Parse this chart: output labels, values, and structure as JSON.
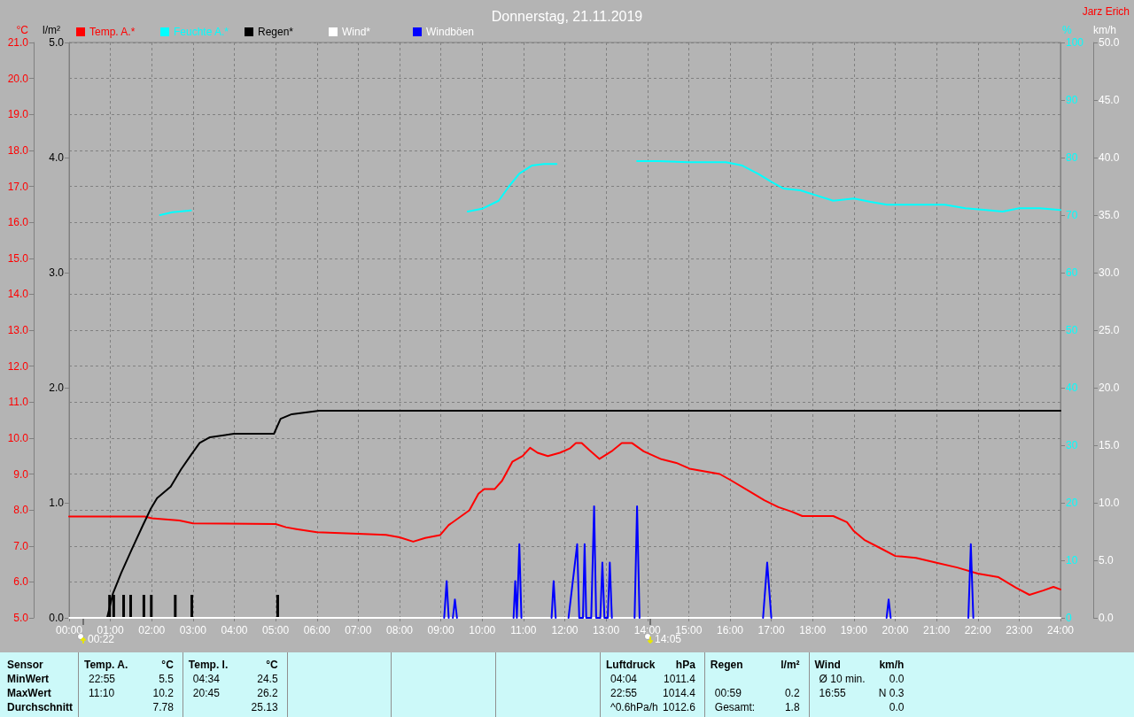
{
  "chart_data": [
    {
      "type": "line",
      "title": "Donnerstag, 21.11.2019",
      "ylabel": "°C",
      "y2label": "l/m²",
      "y3label": "%",
      "xlim": [
        0,
        24
      ],
      "xticks": [
        {
          "value": 0,
          "label": "00:00"
        },
        {
          "value": 1,
          "label": "01:00"
        },
        {
          "value": 2,
          "label": "02:00"
        },
        {
          "value": 3,
          "label": "03:00"
        },
        {
          "value": 4,
          "label": "04:00"
        },
        {
          "value": 5,
          "label": "05:00"
        },
        {
          "value": 6,
          "label": "06:00"
        },
        {
          "value": 7,
          "label": "07:00"
        },
        {
          "value": 8,
          "label": "08:00"
        },
        {
          "value": 9,
          "label": "09:00"
        },
        {
          "value": 10,
          "label": "10:00"
        },
        {
          "value": 11,
          "label": "11:00"
        },
        {
          "value": 12,
          "label": "12:00"
        },
        {
          "value": 13,
          "label": "13:00"
        },
        {
          "value": 14,
          "label": "14:00"
        },
        {
          "value": 15,
          "label": "15:00"
        },
        {
          "value": 16,
          "label": "16:00"
        },
        {
          "value": 17,
          "label": "17:00"
        },
        {
          "value": 18,
          "label": "18:00"
        },
        {
          "value": 19,
          "label": "19:00"
        },
        {
          "value": 20,
          "label": "20:00"
        },
        {
          "value": 21,
          "label": "21:00"
        },
        {
          "value": 22,
          "label": "22:00"
        },
        {
          "value": 23,
          "label": "23:00"
        },
        {
          "value": 24,
          "label": "24:00"
        }
      ],
      "ylim": [
        5,
        21
      ],
      "yticks": [
        {
          "value": 5,
          "label": "5.0"
        },
        {
          "value": 6,
          "label": "6.0"
        },
        {
          "value": 7,
          "label": "7.0"
        },
        {
          "value": 8,
          "label": "8.0"
        },
        {
          "value": 9,
          "label": "9.0"
        },
        {
          "value": 10,
          "label": "10.0"
        },
        {
          "value": 11,
          "label": "11.0"
        },
        {
          "value": 12,
          "label": "12.0"
        },
        {
          "value": 13,
          "label": "13.0"
        },
        {
          "value": 14,
          "label": "14.0"
        },
        {
          "value": 15,
          "label": "15.0"
        },
        {
          "value": 16,
          "label": "16.0"
        },
        {
          "value": 17,
          "label": "17.0"
        },
        {
          "value": 18,
          "label": "18.0"
        },
        {
          "value": 19,
          "label": "19.0"
        },
        {
          "value": 20,
          "label": "20.0"
        },
        {
          "value": 21,
          "label": "21.0"
        }
      ],
      "y2lim": [
        0,
        5
      ],
      "y2ticks": [
        {
          "value": 0,
          "label": "0.0"
        },
        {
          "value": 1,
          "label": "1.0"
        },
        {
          "value": 2,
          "label": "2.0"
        },
        {
          "value": 3,
          "label": "3.0"
        },
        {
          "value": 4,
          "label": "4.0"
        },
        {
          "value": 5,
          "label": "5.0"
        }
      ],
      "y3lim": [
        0,
        100
      ],
      "y3ticks": [
        0,
        10,
        20,
        30,
        40,
        50,
        60,
        70,
        80,
        90,
        100
      ],
      "grid": true,
      "legend": "top left",
      "marker": "none",
      "series": [
        {
          "name": "Temp. A.*",
          "color": "#ff0000",
          "x": [
            0,
            1.83,
            2.0,
            2.67,
            3.0,
            5.0,
            5.25,
            5.5,
            6.0,
            7.0,
            7.67,
            8.0,
            8.33,
            8.62,
            8.98,
            9.19,
            9.69,
            9.91,
            10.05,
            10.3,
            10.48,
            10.73,
            10.98,
            11.16,
            11.34,
            11.59,
            11.88,
            12.12,
            12.27,
            12.41,
            12.59,
            12.84,
            13.13,
            13.38,
            13.63,
            13.91,
            14.34,
            14.7,
            15.02,
            15.75,
            16.0,
            16.5,
            16.83,
            17.17,
            17.5,
            17.75,
            18.5,
            18.83,
            19.0,
            19.25,
            19.67,
            20.0,
            20.5,
            21.0,
            21.5,
            22.0,
            22.5,
            22.92,
            23.25,
            23.58,
            23.83,
            24.0
          ],
          "values": [
            7.82,
            7.82,
            7.77,
            7.71,
            7.63,
            7.61,
            7.52,
            7.47,
            7.38,
            7.34,
            7.31,
            7.24,
            7.12,
            7.22,
            7.3,
            7.58,
            7.99,
            8.45,
            8.58,
            8.58,
            8.81,
            9.34,
            9.5,
            9.73,
            9.59,
            9.5,
            9.59,
            9.71,
            9.86,
            9.86,
            9.67,
            9.42,
            9.63,
            9.86,
            9.86,
            9.63,
            9.41,
            9.31,
            9.15,
            9.0,
            8.84,
            8.5,
            8.27,
            8.08,
            7.95,
            7.83,
            7.83,
            7.66,
            7.41,
            7.17,
            6.92,
            6.72,
            6.67,
            6.53,
            6.4,
            6.23,
            6.13,
            5.84,
            5.64,
            5.76,
            5.86,
            5.79
          ]
        },
        {
          "name": "Feuchte A.*",
          "color": "#00ffff",
          "axis": "y3",
          "x": [
            2.2,
            2.5,
            2.95,
            3.0,
            9.65,
            10.0,
            10.4,
            10.65,
            10.9,
            11.2,
            11.5,
            11.8,
            12.0,
            13.75,
            14.25,
            15.0,
            15.9,
            16.3,
            16.7,
            17.0,
            17.3,
            17.7,
            18.1,
            18.5,
            19.0,
            19.4,
            19.8,
            20.5,
            21.2,
            21.7,
            22.2,
            22.6,
            23.0,
            23.5,
            24.0
          ],
          "values": [
            70.0,
            70.5,
            70.8,
            null,
            70.6,
            71.1,
            72.5,
            75.0,
            77.2,
            78.6,
            78.9,
            78.9,
            null,
            79.4,
            79.4,
            79.2,
            79.2,
            78.6,
            77.1,
            75.8,
            74.6,
            74.3,
            73.4,
            72.5,
            72.9,
            72.3,
            71.8,
            71.8,
            71.8,
            71.2,
            70.9,
            70.6,
            71.2,
            71.2,
            70.9
          ]
        },
        {
          "name": "Regen*",
          "color": "#000000",
          "axis": "y2",
          "x": [
            0,
            0.92,
            1.06,
            1.26,
            1.51,
            1.78,
            1.98,
            2.13,
            2.46,
            2.71,
            2.96,
            3.16,
            3.41,
            3.99,
            4.96,
            5.12,
            5.39,
            6.05,
            24
          ],
          "values": [
            0,
            0,
            0.21,
            0.39,
            0.59,
            0.8,
            0.95,
            1.04,
            1.14,
            1.29,
            1.42,
            1.52,
            1.57,
            1.6,
            1.6,
            1.73,
            1.77,
            1.8,
            1.8
          ]
        },
        {
          "type": "bar",
          "color": "#000000",
          "axis": "y2",
          "x": [
            0.98,
            1.08,
            1.32,
            1.49,
            1.81,
            1.99,
            2.57,
            2.97,
            5.05
          ],
          "values": [
            0.2,
            0.2,
            0.2,
            0.2,
            0.2,
            0.2,
            0.2,
            0.2,
            0.2
          ]
        }
      ],
      "annotations": [
        "Jarz Erich",
        "00:22",
        "14:05",
        "Sensor",
        "MinWert",
        "MaxWert",
        "Durchschnitt",
        "Temp. A.",
        "°C",
        "22:55",
        "5.5",
        "11:10",
        "10.2",
        "7.78",
        "Temp. I.",
        "°C",
        "04:34",
        "24.5",
        "20:45",
        "26.2",
        "25.13",
        "Luftdruck",
        "hPa",
        "04:04",
        "1011.4",
        "22:55",
        "1014.4",
        "^0.6hPa/h",
        "1012.6",
        "Regen",
        "l/m²",
        "00:59",
        "0.2",
        "Gesamt:",
        "1.8",
        "Wind",
        "km/h",
        "Ø 10 min.",
        "0.0",
        "16:55",
        "N 0.3",
        "0.0"
      ]
    },
    {
      "type": "line",
      "ylabel": "km/h",
      "xlim": [
        0,
        24
      ],
      "ylim": [
        0,
        50
      ],
      "yticks": [
        {
          "value": 0,
          "label": "0.0"
        },
        {
          "value": 5,
          "label": "5.0"
        },
        {
          "value": 10,
          "label": "10.0"
        },
        {
          "value": 15,
          "label": "15.0"
        },
        {
          "value": 20,
          "label": "20.0"
        },
        {
          "value": 25,
          "label": "25.0"
        },
        {
          "value": 30,
          "label": "30.0"
        },
        {
          "value": 35,
          "label": "35.0"
        },
        {
          "value": 40,
          "label": "40.0"
        },
        {
          "value": 45,
          "label": "45.0"
        },
        {
          "value": 50,
          "label": "50.0"
        }
      ],
      "tick_labels": "y",
      "legend": "top left",
      "marker": "none",
      "series": [
        {
          "name": "Wind*",
          "color": "#ffffff",
          "x": [
            0,
            24
          ],
          "values": [
            0,
            0
          ]
        },
        {
          "name": "Windböen",
          "color": "#0000ff",
          "x": [
            9.08,
            9.14,
            9.19,
            9.24,
            9.29,
            9.34,
            9.39,
            10.0,
            10.76,
            10.8,
            10.84,
            10.9,
            10.95,
            11.3,
            11.68,
            11.73,
            11.78,
            11.9,
            12.09,
            12.3,
            12.35,
            12.44,
            12.48,
            12.52,
            12.64,
            12.71,
            12.76,
            12.86,
            12.91,
            12.96,
            13.04,
            13.09,
            13.14,
            13.4,
            13.69,
            13.75,
            13.81,
            15.0,
            16.8,
            16.9,
            17.0,
            18.0,
            19.79,
            19.84,
            19.89,
            21.0,
            21.77,
            21.83,
            21.89
          ],
          "values": [
            0,
            3.2,
            0,
            null,
            0,
            1.6,
            0,
            null,
            0,
            3.2,
            0,
            6.4,
            0,
            null,
            0,
            3.2,
            0,
            null,
            0,
            6.4,
            0,
            0,
            6.4,
            0,
            0,
            9.7,
            0,
            0,
            4.8,
            0,
            0,
            4.8,
            0,
            null,
            0,
            9.7,
            0,
            null,
            0,
            4.8,
            0,
            null,
            0,
            1.6,
            0,
            null,
            0,
            6.4,
            0
          ]
        }
      ]
    }
  ]
}
